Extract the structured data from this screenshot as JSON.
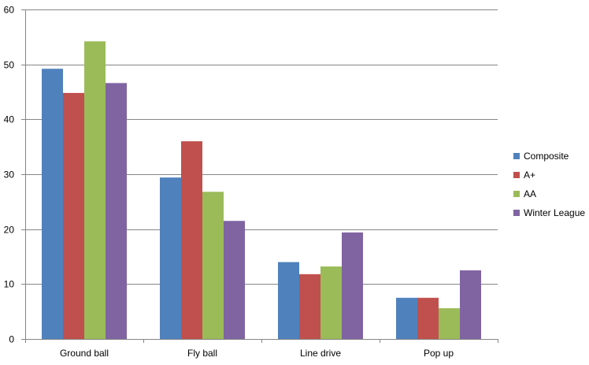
{
  "chart_data": {
    "type": "bar",
    "title": "",
    "xlabel": "",
    "ylabel": "",
    "categories": [
      "Ground ball",
      "Fly ball",
      "Line drive",
      "Pop up"
    ],
    "series": [
      {
        "name": "Composite",
        "color": "#4f81bd",
        "values": [
          49.2,
          29.4,
          14.0,
          7.5
        ]
      },
      {
        "name": "A+",
        "color": "#c0504d",
        "values": [
          44.8,
          36.0,
          11.8,
          7.5
        ]
      },
      {
        "name": "AA",
        "color": "#9bbb59",
        "values": [
          54.2,
          26.8,
          13.2,
          5.6
        ]
      },
      {
        "name": "Winter League",
        "color": "#8064a2",
        "values": [
          46.6,
          21.5,
          19.4,
          12.5
        ]
      }
    ],
    "ylim": [
      0,
      60
    ],
    "yticks": [
      0,
      10,
      20,
      30,
      40,
      50,
      60
    ],
    "grid": true,
    "legend_position": "right"
  }
}
